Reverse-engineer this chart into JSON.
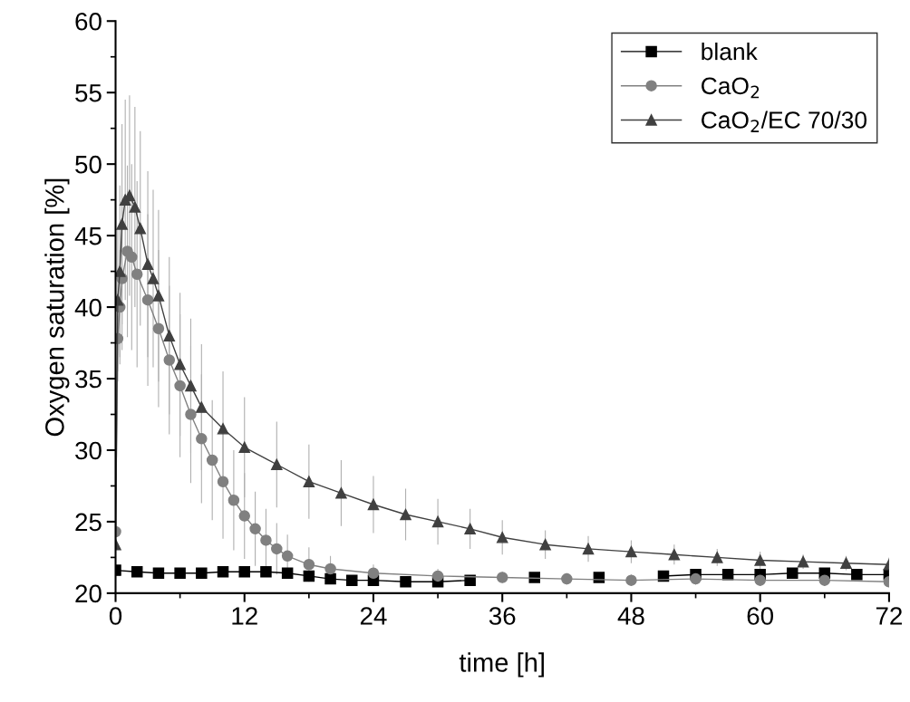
{
  "chart_data": {
    "type": "line",
    "xlabel": "time [h]",
    "ylabel": "Oxygen saturation [%]",
    "xlim": [
      0,
      72
    ],
    "xticks": [
      0,
      12,
      24,
      36,
      48,
      60,
      72
    ],
    "ylim": [
      20,
      60
    ],
    "yticks": [
      20,
      25,
      30,
      35,
      40,
      45,
      50,
      55,
      60
    ],
    "grid": false,
    "legend": "top right",
    "series": [
      {
        "name": "blank",
        "color": "#000000",
        "marker": "square",
        "x": [
          0,
          2,
          4,
          6,
          8,
          10,
          12,
          14,
          16,
          18,
          20,
          22,
          24,
          27,
          30,
          33,
          36,
          39,
          42,
          45,
          48,
          51,
          54,
          57,
          60,
          63,
          66,
          69,
          72
        ],
        "values": [
          21.6,
          21.5,
          21.4,
          21.4,
          21.4,
          21.5,
          21.5,
          21.5,
          21.4,
          21.2,
          21.0,
          20.9,
          20.9,
          20.8,
          20.8,
          20.9,
          null,
          21.1,
          null,
          21.1,
          null,
          21.2,
          21.3,
          21.3,
          21.3,
          21.4,
          21.4,
          21.3,
          21.3
        ]
      },
      {
        "name": "CaO$_{2}$",
        "color": "#808080",
        "marker": "circle",
        "x": [
          0,
          0.2,
          0.4,
          0.6,
          1.1,
          1.5,
          2,
          3,
          4,
          5,
          6,
          7,
          8,
          9,
          10,
          11,
          12,
          13,
          14,
          15,
          16,
          18,
          20,
          24,
          30,
          36,
          42,
          48,
          54,
          60,
          66,
          72
        ],
        "values": [
          24.3,
          37.8,
          40,
          42,
          43.9,
          43.5,
          42.3,
          40.5,
          38.5,
          36.3,
          34.5,
          32.5,
          30.8,
          29.3,
          27.8,
          26.5,
          25.4,
          24.5,
          23.7,
          23.1,
          22.6,
          22.0,
          21.7,
          21.4,
          21.2,
          21.1,
          21.0,
          20.9,
          21.0,
          20.9,
          20.9,
          20.8
        ],
        "errors": [
          0,
          3,
          4,
          5,
          6,
          6.5,
          6.5,
          6,
          5.5,
          5.2,
          5,
          4.8,
          4.5,
          4.2,
          4,
          3.5,
          3,
          2.6,
          2.2,
          1.8,
          1.5,
          1.2,
          0.9,
          0.6,
          0.5,
          0.4,
          0.4,
          0.4,
          0.4,
          0.4,
          0.4,
          0.4
        ]
      },
      {
        "name": "CaO$_{2}$/EC 70/30",
        "color": "#404040",
        "marker": "triangle",
        "x": [
          0,
          0.2,
          0.4,
          0.6,
          0.9,
          1.3,
          1.8,
          2.3,
          3,
          3.5,
          4,
          5,
          6,
          7,
          8,
          10,
          12,
          15,
          18,
          21,
          24,
          27,
          30,
          33,
          36,
          40,
          44,
          48,
          52,
          56,
          60,
          64,
          68,
          72
        ],
        "values": [
          23.4,
          40.5,
          42.5,
          45.8,
          47.5,
          47.8,
          47,
          45.5,
          43,
          42,
          40.8,
          38,
          36,
          34.5,
          33,
          31.5,
          30.2,
          29,
          27.8,
          27,
          26.2,
          25.5,
          25,
          24.5,
          23.9,
          23.4,
          23.1,
          22.9,
          22.7,
          22.5,
          22.3,
          22.2,
          22.1,
          22.0
        ],
        "errors": [
          0,
          5,
          6,
          7,
          7,
          7,
          7,
          6.8,
          6.5,
          6.2,
          6,
          5.5,
          5,
          4.7,
          4.4,
          4,
          3.5,
          3,
          2.6,
          2.3,
          2,
          1.8,
          1.6,
          1.4,
          1.2,
          1,
          0.9,
          0.8,
          0.7,
          0.6,
          0.6,
          0.5,
          0.5,
          0.5
        ]
      }
    ]
  }
}
